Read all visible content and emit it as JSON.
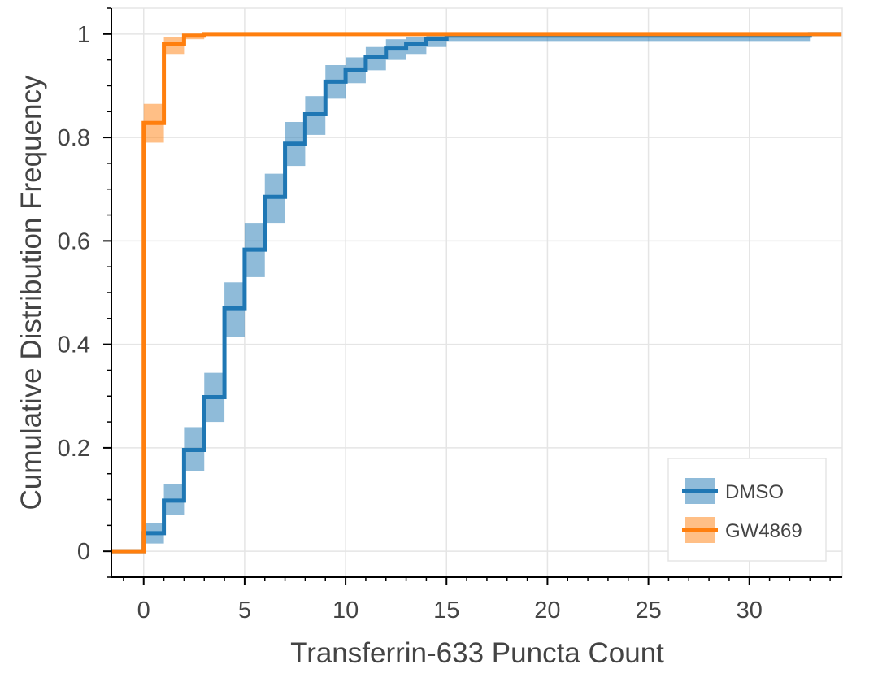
{
  "chart_data": {
    "type": "line",
    "subtype": "ecdf-step",
    "title": "",
    "xlabel": "Transferrin-633 Puncta Count",
    "ylabel": "Cumulative Distribution Frequency",
    "xlim": [
      -1.6,
      34.6
    ],
    "ylim": [
      -0.05,
      1.05
    ],
    "xticks": [
      0,
      5,
      10,
      15,
      20,
      25,
      30
    ],
    "xtick_labels": [
      "0",
      "5",
      "10",
      "15",
      "20",
      "25",
      "30"
    ],
    "yticks": [
      0,
      0.2,
      0.4,
      0.6,
      0.8,
      1
    ],
    "ytick_labels": [
      "0",
      "0.2",
      "0.4",
      "0.6",
      "0.8",
      "1"
    ],
    "grid": true,
    "legend_position": "bottom-right",
    "series": [
      {
        "name": "DMSO",
        "color": "#1f77b4",
        "band_color": "#1f77b4",
        "band_opacity": 0.5,
        "steps": [
          {
            "x": 0,
            "y": 0.035,
            "lo": 0.015,
            "hi": 0.055
          },
          {
            "x": 1,
            "y": 0.098,
            "lo": 0.07,
            "hi": 0.13
          },
          {
            "x": 2,
            "y": 0.196,
            "lo": 0.155,
            "hi": 0.24
          },
          {
            "x": 3,
            "y": 0.298,
            "lo": 0.25,
            "hi": 0.345
          },
          {
            "x": 4,
            "y": 0.47,
            "lo": 0.415,
            "hi": 0.52
          },
          {
            "x": 5,
            "y": 0.583,
            "lo": 0.53,
            "hi": 0.635
          },
          {
            "x": 6,
            "y": 0.685,
            "lo": 0.635,
            "hi": 0.73
          },
          {
            "x": 7,
            "y": 0.788,
            "lo": 0.745,
            "hi": 0.83
          },
          {
            "x": 8,
            "y": 0.845,
            "lo": 0.805,
            "hi": 0.88
          },
          {
            "x": 9,
            "y": 0.908,
            "lo": 0.875,
            "hi": 0.94
          },
          {
            "x": 10,
            "y": 0.93,
            "lo": 0.905,
            "hi": 0.955
          },
          {
            "x": 11,
            "y": 0.955,
            "lo": 0.93,
            "hi": 0.975
          },
          {
            "x": 12,
            "y": 0.972,
            "lo": 0.95,
            "hi": 0.99
          },
          {
            "x": 13,
            "y": 0.98,
            "lo": 0.96,
            "hi": 0.995
          },
          {
            "x": 14,
            "y": 0.99,
            "lo": 0.975,
            "hi": 1.0
          },
          {
            "x": 15,
            "y": 0.997,
            "lo": 0.985,
            "hi": 1.0
          },
          {
            "x": 33,
            "y": 1.0,
            "lo": 1.0,
            "hi": 1.0
          }
        ]
      },
      {
        "name": "GW4869",
        "color": "#ff7f0e",
        "band_color": "#ff7f0e",
        "band_opacity": 0.5,
        "steps": [
          {
            "x": 0,
            "y": 0.828,
            "lo": 0.79,
            "hi": 0.865
          },
          {
            "x": 1,
            "y": 0.98,
            "lo": 0.96,
            "hi": 0.995
          },
          {
            "x": 2,
            "y": 0.997,
            "lo": 0.99,
            "hi": 1.0
          },
          {
            "x": 3,
            "y": 1.0,
            "lo": 1.0,
            "hi": 1.0
          }
        ]
      }
    ]
  }
}
